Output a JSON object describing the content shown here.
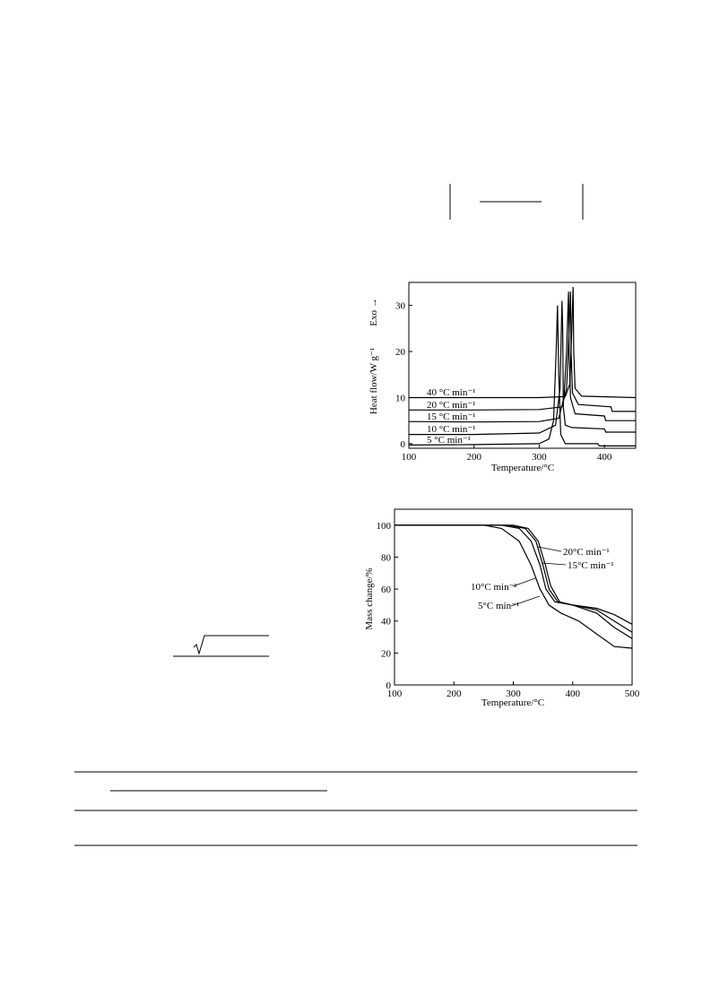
{
  "chart_data": [
    {
      "type": "line",
      "color": "#000000",
      "x_label": "Temperature/°C",
      "y_label": "Heat flow/W g⁻¹",
      "annotation": "Exo →",
      "xlim": [
        100,
        448
      ],
      "xticks": [
        100,
        200,
        300,
        400
      ],
      "ylim": [
        -1,
        35
      ],
      "yticks": [
        0,
        10,
        20,
        30
      ],
      "series": [
        {
          "name": "5 °C min⁻¹",
          "x": [
            100,
            200,
            300,
            315,
            322,
            326,
            328,
            330,
            333,
            340,
            360,
            390,
            392,
            448
          ],
          "values": [
            -0.3,
            -0.2,
            0,
            1,
            5,
            20,
            30,
            15,
            2,
            0,
            0,
            0,
            -0.5,
            -0.5
          ]
        },
        {
          "name": "10 °C min⁻¹",
          "x": [
            100,
            200,
            300,
            325,
            332,
            335,
            336,
            337,
            340,
            350,
            400,
            402,
            448
          ],
          "values": [
            2,
            2,
            2.3,
            4,
            12,
            31,
            25,
            8,
            4,
            3.5,
            3.2,
            2.5,
            2.5
          ]
        },
        {
          "name": "15 °C min⁻¹",
          "x": [
            100,
            200,
            300,
            330,
            338,
            342,
            345,
            346,
            348,
            355,
            400,
            402,
            448
          ],
          "values": [
            4.8,
            4.7,
            4.8,
            5.5,
            10,
            20,
            33,
            20,
            10,
            6.5,
            6,
            5,
            5
          ]
        },
        {
          "name": "20 °C min⁻¹",
          "x": [
            100,
            200,
            300,
            335,
            342,
            346,
            348,
            349,
            351,
            360,
            410,
            412,
            448
          ],
          "values": [
            7.3,
            7.3,
            7.4,
            8,
            12,
            25,
            33,
            20,
            11,
            8.5,
            8,
            7,
            7
          ]
        },
        {
          "name": "40 °C min⁻¹",
          "x": [
            100,
            200,
            300,
            340,
            347,
            350,
            352,
            353,
            355,
            365,
            448
          ],
          "values": [
            10,
            10,
            10,
            10.2,
            13,
            25,
            34,
            20,
            12,
            10.3,
            10
          ]
        }
      ]
    },
    {
      "type": "line",
      "color": "#000000",
      "x_label": "Temperature/°C",
      "y_label": "Mass change/%",
      "xlim": [
        100,
        500
      ],
      "xticks": [
        100,
        200,
        300,
        400,
        500
      ],
      "ylim": [
        0,
        110
      ],
      "yticks": [
        0,
        20,
        40,
        60,
        80,
        100
      ],
      "series": [
        {
          "name": "5°C min⁻¹",
          "x": [
            100,
            250,
            280,
            310,
            330,
            345,
            360,
            380,
            410,
            440,
            470,
            500
          ],
          "values": [
            100,
            100,
            98,
            90,
            75,
            60,
            50,
            45,
            40,
            32,
            24,
            23
          ]
        },
        {
          "name": "10°C min⁻¹",
          "x": [
            100,
            280,
            310,
            330,
            345,
            355,
            370,
            400,
            440,
            470,
            500
          ],
          "values": [
            100,
            100,
            98,
            90,
            75,
            60,
            52,
            50,
            45,
            36,
            29
          ]
        },
        {
          "name": "15°C min⁻¹",
          "x": [
            100,
            290,
            320,
            338,
            350,
            360,
            375,
            400,
            440,
            470,
            500
          ],
          "values": [
            100,
            100,
            98,
            90,
            75,
            60,
            52,
            50,
            47,
            40,
            33
          ]
        },
        {
          "name": "20°C min⁻¹",
          "x": [
            100,
            300,
            325,
            342,
            354,
            363,
            378,
            400,
            440,
            470,
            500
          ],
          "values": [
            100,
            100,
            98,
            90,
            75,
            62,
            52,
            50,
            48,
            44,
            38
          ]
        }
      ]
    }
  ]
}
